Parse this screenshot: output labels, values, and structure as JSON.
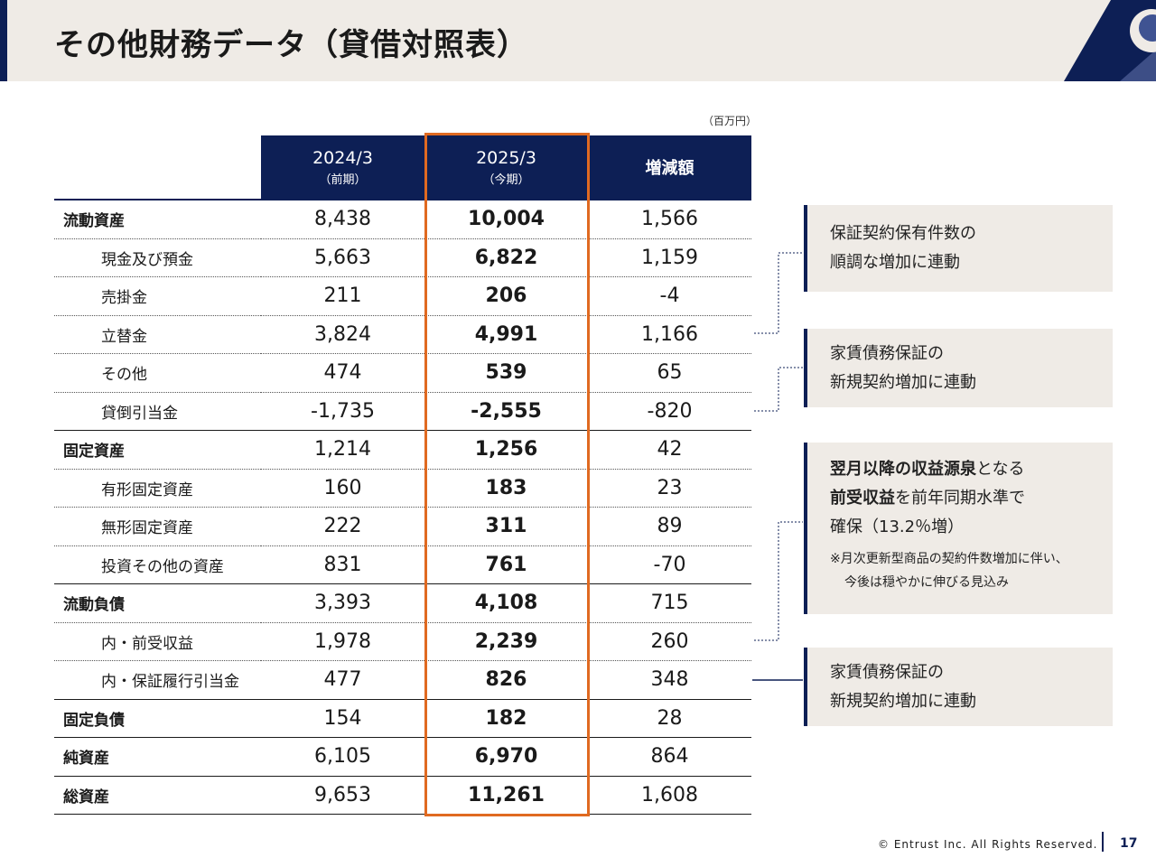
{
  "title": "その他財務データ（貸借対照表）",
  "unit": "（百万円）",
  "table": {
    "headers": [
      {
        "label": "2024/3",
        "sub": "（前期）"
      },
      {
        "label": "2025/3",
        "sub": "（今期）"
      },
      {
        "label": "増減額"
      }
    ],
    "rows": [
      {
        "label": "流動資産",
        "prev": "8,438",
        "cur": "10,004",
        "diff": "1,566"
      },
      {
        "label": "現金及び預金",
        "prev": "5,663",
        "cur": "6,822",
        "diff": "1,159"
      },
      {
        "label": "売掛金",
        "prev": "211",
        "cur": "206",
        "diff": "-4"
      },
      {
        "label": "立替金",
        "prev": "3,824",
        "cur": "4,991",
        "diff": "1,166"
      },
      {
        "label": "その他",
        "prev": "474",
        "cur": "539",
        "diff": "65"
      },
      {
        "label": "貸倒引当金",
        "prev": "-1,735",
        "cur": "-2,555",
        "diff": "-820"
      },
      {
        "label": "固定資産",
        "prev": "1,214",
        "cur": "1,256",
        "diff": "42"
      },
      {
        "label": "有形固定資産",
        "prev": "160",
        "cur": "183",
        "diff": "23"
      },
      {
        "label": "無形固定資産",
        "prev": "222",
        "cur": "311",
        "diff": "89"
      },
      {
        "label": "投資その他の資産",
        "prev": "831",
        "cur": "761",
        "diff": "-70"
      },
      {
        "label": "流動負債",
        "prev": "3,393",
        "cur": "4,108",
        "diff": "715"
      },
      {
        "label": "内・前受収益",
        "prev": "1,978",
        "cur": "2,239",
        "diff": "260"
      },
      {
        "label": "内・保証履行引当金",
        "prev": "477",
        "cur": "826",
        "diff": "348"
      },
      {
        "label": "固定負債",
        "prev": "154",
        "cur": "182",
        "diff": "28"
      },
      {
        "label": "純資産",
        "prev": "6,105",
        "cur": "6,970",
        "diff": "864"
      },
      {
        "label": "総資産",
        "prev": "9,653",
        "cur": "11,261",
        "diff": "1,608"
      }
    ]
  },
  "notes": {
    "n1": {
      "line1": "保証契約保有件数の",
      "line2": "順調な増加に連動"
    },
    "n2": {
      "line1": "家賃債務保証の",
      "line2": "新規契約増加に連動"
    },
    "n3": {
      "b1": "翌月以降の収益源泉",
      "t1": "となる",
      "b2": "前受収益",
      "t2": "を前年同期水準で",
      "t3": "確保（13.2％増）",
      "s1": "※月次更新型商品の契約件数増加に伴い、",
      "s2": "今後は穏やかに伸びる見込み"
    },
    "n4": {
      "line1": "家賃債務保証の",
      "line2": "新規契約増加に連動"
    }
  },
  "footer": {
    "copyright": "© Entrust Inc. All Rights Reserved.",
    "page": "17"
  },
  "colors": {
    "navy": "#0d1f55",
    "orange": "#e06a21",
    "beige": "#efebe6"
  }
}
